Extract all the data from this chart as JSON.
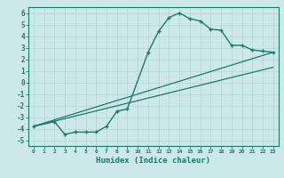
{
  "title": "",
  "xlabel": "Humidex (Indice chaleur)",
  "bg_color": "#cce8e8",
  "line_color": "#1a7a6a",
  "grid_color": "#b8d8d8",
  "xlim": [
    -0.5,
    23.5
  ],
  "ylim": [
    -5.5,
    6.5
  ],
  "xticks": [
    0,
    1,
    2,
    3,
    4,
    5,
    6,
    7,
    8,
    9,
    10,
    11,
    12,
    13,
    14,
    15,
    16,
    17,
    18,
    19,
    20,
    21,
    22,
    23
  ],
  "yticks": [
    -5,
    -4,
    -3,
    -2,
    -1,
    0,
    1,
    2,
    3,
    4,
    5,
    6
  ],
  "line1_x": [
    0,
    2,
    3,
    4,
    5,
    6,
    7,
    8,
    9,
    11,
    12,
    13,
    14,
    15,
    16,
    17,
    18,
    19,
    20,
    21,
    22,
    23
  ],
  "line1_y": [
    -3.8,
    -3.4,
    -4.5,
    -4.3,
    -4.3,
    -4.3,
    -3.8,
    -2.5,
    -2.3,
    2.6,
    4.4,
    5.6,
    6.0,
    5.5,
    5.3,
    4.6,
    4.5,
    3.2,
    3.2,
    2.8,
    2.7,
    2.6
  ],
  "line2_x": [
    0,
    23
  ],
  "line2_y": [
    -3.8,
    2.6
  ],
  "line3_x": [
    0,
    23
  ],
  "line3_y": [
    -3.8,
    1.3
  ]
}
